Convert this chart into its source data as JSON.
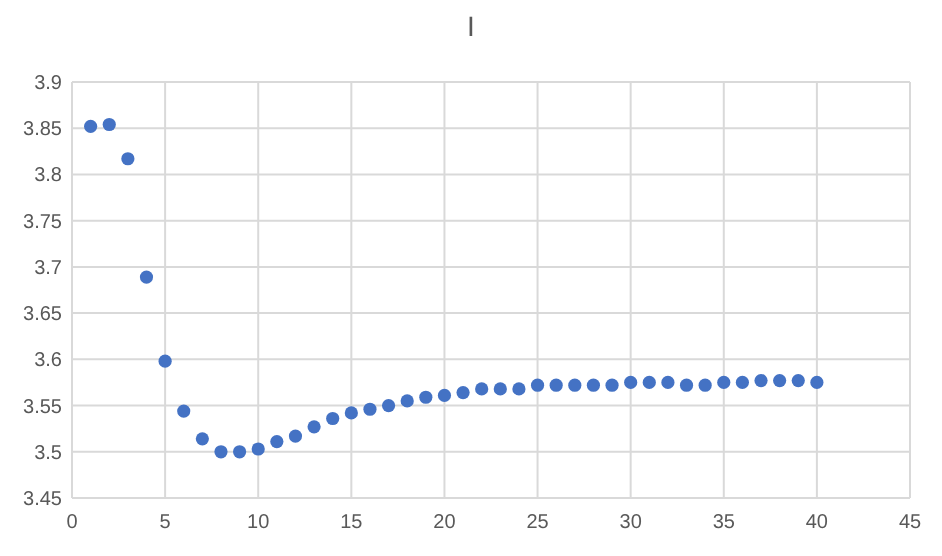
{
  "chart_data": {
    "type": "scatter",
    "title": "I",
    "x": [
      1,
      2,
      3,
      4,
      5,
      6,
      7,
      8,
      9,
      10,
      11,
      12,
      13,
      14,
      15,
      16,
      17,
      18,
      19,
      20,
      21,
      22,
      23,
      24,
      25,
      26,
      27,
      28,
      29,
      30,
      31,
      32,
      33,
      34,
      35,
      36,
      37,
      38,
      39,
      40
    ],
    "series": [
      {
        "color": "#4472c4",
        "values": [
          3.852,
          3.854,
          3.817,
          3.689,
          3.598,
          3.544,
          3.514,
          3.5,
          3.5,
          3.503,
          3.511,
          3.517,
          3.527,
          3.536,
          3.542,
          3.546,
          3.55,
          3.555,
          3.559,
          3.561,
          3.564,
          3.568,
          3.568,
          3.568,
          3.572,
          3.572,
          3.572,
          3.572,
          3.572,
          3.575,
          3.575,
          3.575,
          3.572,
          3.572,
          3.575,
          3.575,
          3.577,
          3.577,
          3.577,
          3.575
        ]
      }
    ],
    "xlim": [
      0,
      45
    ],
    "xticks": [
      0,
      5,
      10,
      15,
      20,
      25,
      30,
      35,
      40,
      45
    ],
    "ylim": [
      3.45,
      3.9
    ],
    "yticks": [
      3.45,
      3.5,
      3.55,
      3.6,
      3.65,
      3.7,
      3.75,
      3.8,
      3.85,
      3.9
    ],
    "grid": true,
    "marker": "circle"
  }
}
